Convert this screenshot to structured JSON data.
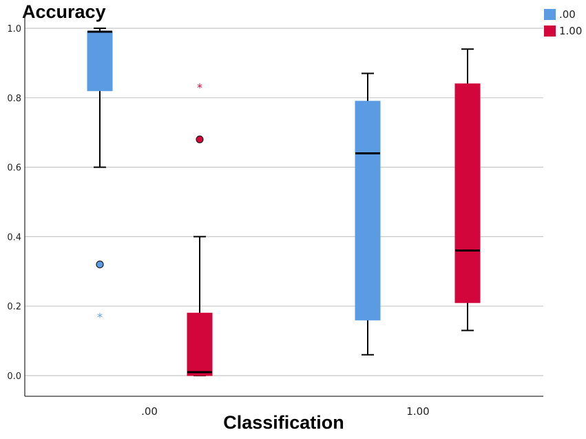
{
  "chart_data": {
    "type": "boxplot",
    "title": "Accuracy",
    "xlabel": "Classification",
    "ylabel": "",
    "ylim": [
      -0.06,
      1.06
    ],
    "yticks": [
      "0.0",
      "0.2",
      "0.4",
      "0.6",
      "0.8",
      "1.0"
    ],
    "ytick_values": [
      0.0,
      0.2,
      0.4,
      0.6,
      0.8,
      1.0
    ],
    "categories": [
      ".00",
      "1.00"
    ],
    "grid": true,
    "legend_position": "top-right",
    "series": [
      {
        "name": ".00",
        "color": "#5b9be3",
        "boxes": [
          {
            "whislo": 0.6,
            "q1": 0.82,
            "med": 0.99,
            "q3": 0.99,
            "whishi": 1.0,
            "outliers": [
              0.32
            ],
            "extremes": [
              0.17
            ]
          },
          {
            "whislo": 0.06,
            "q1": 0.16,
            "med": 0.64,
            "q3": 0.79,
            "whishi": 0.87,
            "outliers": [],
            "extremes": []
          }
        ]
      },
      {
        "name": "1.00",
        "color": "#d2063a",
        "boxes": [
          {
            "whislo": 0.0,
            "q1": 0.0,
            "med": 0.01,
            "q3": 0.18,
            "whishi": 0.4,
            "outliers": [
              0.68
            ],
            "extremes": [
              0.83
            ]
          },
          {
            "whislo": 0.13,
            "q1": 0.21,
            "med": 0.36,
            "q3": 0.84,
            "whishi": 0.94,
            "outliers": [],
            "extremes": []
          }
        ]
      }
    ]
  }
}
